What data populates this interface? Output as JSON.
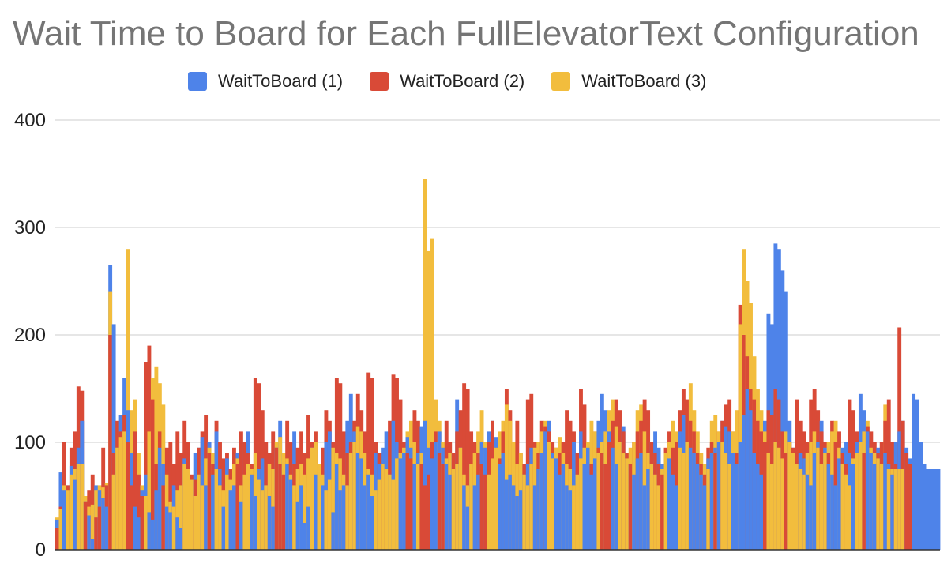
{
  "chart_data": {
    "type": "bar",
    "title": "Wait Time to Board for Each FullElevatorText Configuration",
    "xlabel": "",
    "ylabel": "",
    "ylim": [
      0,
      400
    ],
    "yticks": [
      "0",
      "100",
      "200",
      "300",
      "400"
    ],
    "grid": true,
    "legend_position": "top",
    "stacked": false,
    "series": [
      {
        "name": "WaitToBoard (1)",
        "color": "#4e83e9",
        "values": [
          28,
          72,
          55,
          60,
          78,
          65,
          95,
          120,
          45,
          32,
          10,
          60,
          55,
          48,
          40,
          265,
          210,
          95,
          125,
          160,
          130,
          90,
          40,
          30,
          55,
          70,
          35,
          28,
          55,
          95,
          80,
          40,
          35,
          60,
          30,
          20,
          85,
          100,
          65,
          90,
          95,
          105,
          60,
          100,
          70,
          110,
          75,
          40,
          85,
          55,
          60,
          90,
          45,
          100,
          110,
          70,
          50,
          75,
          85,
          60,
          50,
          40,
          95,
          120,
          90,
          80,
          65,
          110,
          45,
          60,
          25,
          40,
          95,
          70,
          80,
          60,
          100,
          110,
          35,
          80,
          55,
          60,
          120,
          145,
          110,
          90,
          85,
          60,
          70,
          50,
          90,
          80,
          95,
          110,
          70,
          120,
          100,
          85,
          90,
          105,
          95,
          80,
          90,
          115,
          120,
          95,
          85,
          100,
          110,
          95,
          80,
          70,
          90,
          140,
          95,
          60,
          40,
          80,
          60,
          70,
          100,
          95,
          110,
          120,
          105,
          80,
          90,
          65,
          70,
          60,
          50,
          55,
          70,
          80,
          95,
          60,
          75,
          90,
          110,
          120,
          90,
          85,
          70,
          80,
          60,
          55,
          100,
          90,
          110,
          80,
          95,
          70,
          85,
          120,
          145,
          130,
          110,
          95,
          80,
          100,
          115,
          90,
          80,
          70,
          85,
          90,
          60,
          75,
          100,
          110,
          95,
          80,
          90,
          85,
          70,
          60,
          110,
          125,
          100,
          95,
          90,
          80,
          70,
          60,
          85,
          90,
          95,
          100,
          120,
          115,
          110,
          90,
          80,
          100,
          125,
          150,
          130,
          90,
          80,
          70,
          120,
          220,
          210,
          285,
          280,
          260,
          240,
          120,
          95,
          80,
          90,
          85,
          70,
          60,
          90,
          100,
          120,
          95,
          80,
          70,
          60,
          85,
          95,
          100,
          90,
          80,
          100,
          145,
          130,
          110,
          90,
          80,
          95,
          100,
          90,
          80,
          70,
          100,
          110,
          120,
          95,
          85,
          145,
          140,
          100,
          80,
          75,
          75,
          75,
          75
        ]
      },
      {
        "name": "WaitToBoard (2)",
        "color": "#d94a37",
        "values": [
          20,
          40,
          100,
          60,
          95,
          110,
          152,
          148,
          45,
          55,
          70,
          30,
          40,
          95,
          60,
          200,
          90,
          120,
          110,
          125,
          100,
          60,
          110,
          70,
          50,
          175,
          190,
          140,
          80,
          110,
          60,
          95,
          100,
          80,
          110,
          90,
          120,
          100,
          70,
          65,
          95,
          110,
          125,
          90,
          80,
          120,
          100,
          85,
          90,
          75,
          95,
          80,
          110,
          100,
          90,
          80,
          160,
          155,
          130,
          100,
          90,
          110,
          95,
          80,
          70,
          120,
          100,
          80,
          95,
          110,
          90,
          125,
          100,
          110,
          80,
          95,
          130,
          120,
          100,
          160,
          155,
          110,
          90,
          100,
          120,
          145,
          130,
          110,
          165,
          160,
          100,
          90,
          80,
          75,
          120,
          163,
          160,
          140,
          100,
          90,
          85,
          130,
          120,
          80,
          60,
          70,
          100,
          110,
          90,
          80,
          120,
          100,
          90,
          110,
          130,
          155,
          150,
          110,
          100,
          90,
          80,
          70,
          100,
          120,
          95,
          85,
          110,
          150,
          130,
          100,
          120,
          90,
          80,
          140,
          145,
          100,
          90,
          120,
          115,
          110,
          100,
          95,
          90,
          100,
          130,
          120,
          110,
          90,
          150,
          135,
          100,
          80,
          110,
          95,
          90,
          80,
          100,
          120,
          140,
          130,
          110,
          90,
          80,
          100,
          110,
          120,
          140,
          130,
          100,
          90,
          80,
          70,
          95,
          110,
          95,
          100,
          130,
          150,
          140,
          120,
          110,
          90,
          80,
          70,
          95,
          100,
          90,
          110,
          120,
          135,
          140,
          110,
          90,
          228,
          200,
          180,
          150,
          140,
          120,
          110,
          100,
          130,
          125,
          150,
          140,
          110,
          90,
          100,
          95,
          140,
          120,
          110,
          100,
          140,
          150,
          130,
          110,
          100,
          90,
          120,
          100,
          110,
          90,
          80,
          140,
          130,
          110,
          100,
          90,
          115,
          110,
          100,
          90,
          100,
          120,
          140,
          100,
          80,
          207,
          120,
          90,
          80
        ]
      },
      {
        "name": "WaitToBoard (3)",
        "color": "#f2bd3d",
        "values": [
          30,
          38,
          60,
          55,
          70,
          75,
          80,
          80,
          50,
          40,
          42,
          55,
          60,
          58,
          62,
          240,
          70,
          95,
          105,
          110,
          280,
          130,
          140,
          90,
          60,
          50,
          110,
          160,
          170,
          155,
          135,
          70,
          45,
          40,
          55,
          60,
          80,
          75,
          65,
          50,
          70,
          60,
          85,
          95,
          90,
          75,
          60,
          55,
          70,
          65,
          80,
          85,
          60,
          70,
          80,
          75,
          90,
          65,
          55,
          60,
          80,
          75,
          100,
          105,
          90,
          85,
          70,
          60,
          75,
          80,
          70,
          85,
          95,
          100,
          80,
          70,
          55,
          65,
          95,
          90,
          85,
          70,
          60,
          90,
          100,
          115,
          110,
          90,
          75,
          70,
          55,
          65,
          80,
          75,
          70,
          65,
          85,
          90,
          95,
          110,
          120,
          100,
          80,
          90,
          345,
          278,
          290,
          140,
          120,
          100,
          85,
          90,
          75,
          80,
          95,
          70,
          60,
          80,
          90,
          110,
          130,
          100,
          70,
          85,
          95,
          110,
          120,
          135,
          120,
          100,
          80,
          90,
          70,
          60,
          80,
          95,
          100,
          110,
          120,
          100,
          85,
          95,
          105,
          90,
          80,
          75,
          60,
          70,
          85,
          95,
          100,
          120,
          110,
          90,
          100,
          110,
          130,
          140,
          115,
          100,
          90,
          85,
          95,
          100,
          130,
          135,
          110,
          90,
          80,
          70,
          60,
          75,
          90,
          100,
          120,
          110,
          95,
          90,
          100,
          155,
          130,
          110,
          90,
          80,
          75,
          120,
          125,
          110,
          100,
          90,
          80,
          110,
          130,
          210,
          280,
          250,
          230,
          180,
          150,
          130,
          110,
          90,
          80,
          100,
          95,
          85,
          110,
          100,
          90,
          80,
          75,
          70,
          90,
          100,
          110,
          95,
          80,
          90,
          100,
          110,
          120,
          95,
          80,
          70,
          60,
          85,
          90,
          100,
          110,
          120,
          95,
          90,
          85,
          80,
          135,
          75,
          75,
          75,
          75,
          75
        ]
      }
    ]
  }
}
